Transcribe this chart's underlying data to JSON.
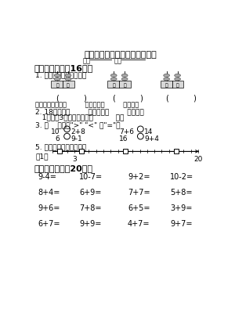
{
  "title": "苏教版一年级数学上册期末试卷",
  "bg_color": "#ffffff",
  "line1_label1": "姓名",
  "line1_label2": "班级",
  "sec1_header": "一、填一填。（16分）",
  "q1_text": "1. 写出计数器表示的数。",
  "q1_bottom": "上面三个数中。（         ）最大，（         ）最小。",
  "q2_line1": "2. 18里面有（        ）个十和（        ）个一。",
  "q2_line2": "   1个十和3个一合起来是（          ）。",
  "q3_text": "3. 在    里填上\">\" \"<\" 或\"=\"。",
  "q3_r1_left": "10",
  "q3_r1_mid": "2+8",
  "q3_r1_right1": "7+6",
  "q3_r1_right2": "14",
  "q3_r2_left": "6",
  "q3_r2_mid": "9-1",
  "q3_r2_right1": "16",
  "q3_r2_right2": "9+4",
  "q5_text": "5. 在口里填上合适的数。",
  "q5_sub": "（1）",
  "sec2_header": "二、算一算。（20分）",
  "math_row1": [
    "9-4=",
    "10-7=",
    "9+2=",
    "10-2="
  ],
  "math_row2": [
    "8+4=",
    "6+9=",
    "7+7=",
    "5+8="
  ],
  "math_row3": [
    "9+6=",
    "7+8=",
    "6+5=",
    "3+9="
  ],
  "math_row4": [
    "6+7=",
    "9+9=",
    "4+7=",
    "9+7="
  ]
}
